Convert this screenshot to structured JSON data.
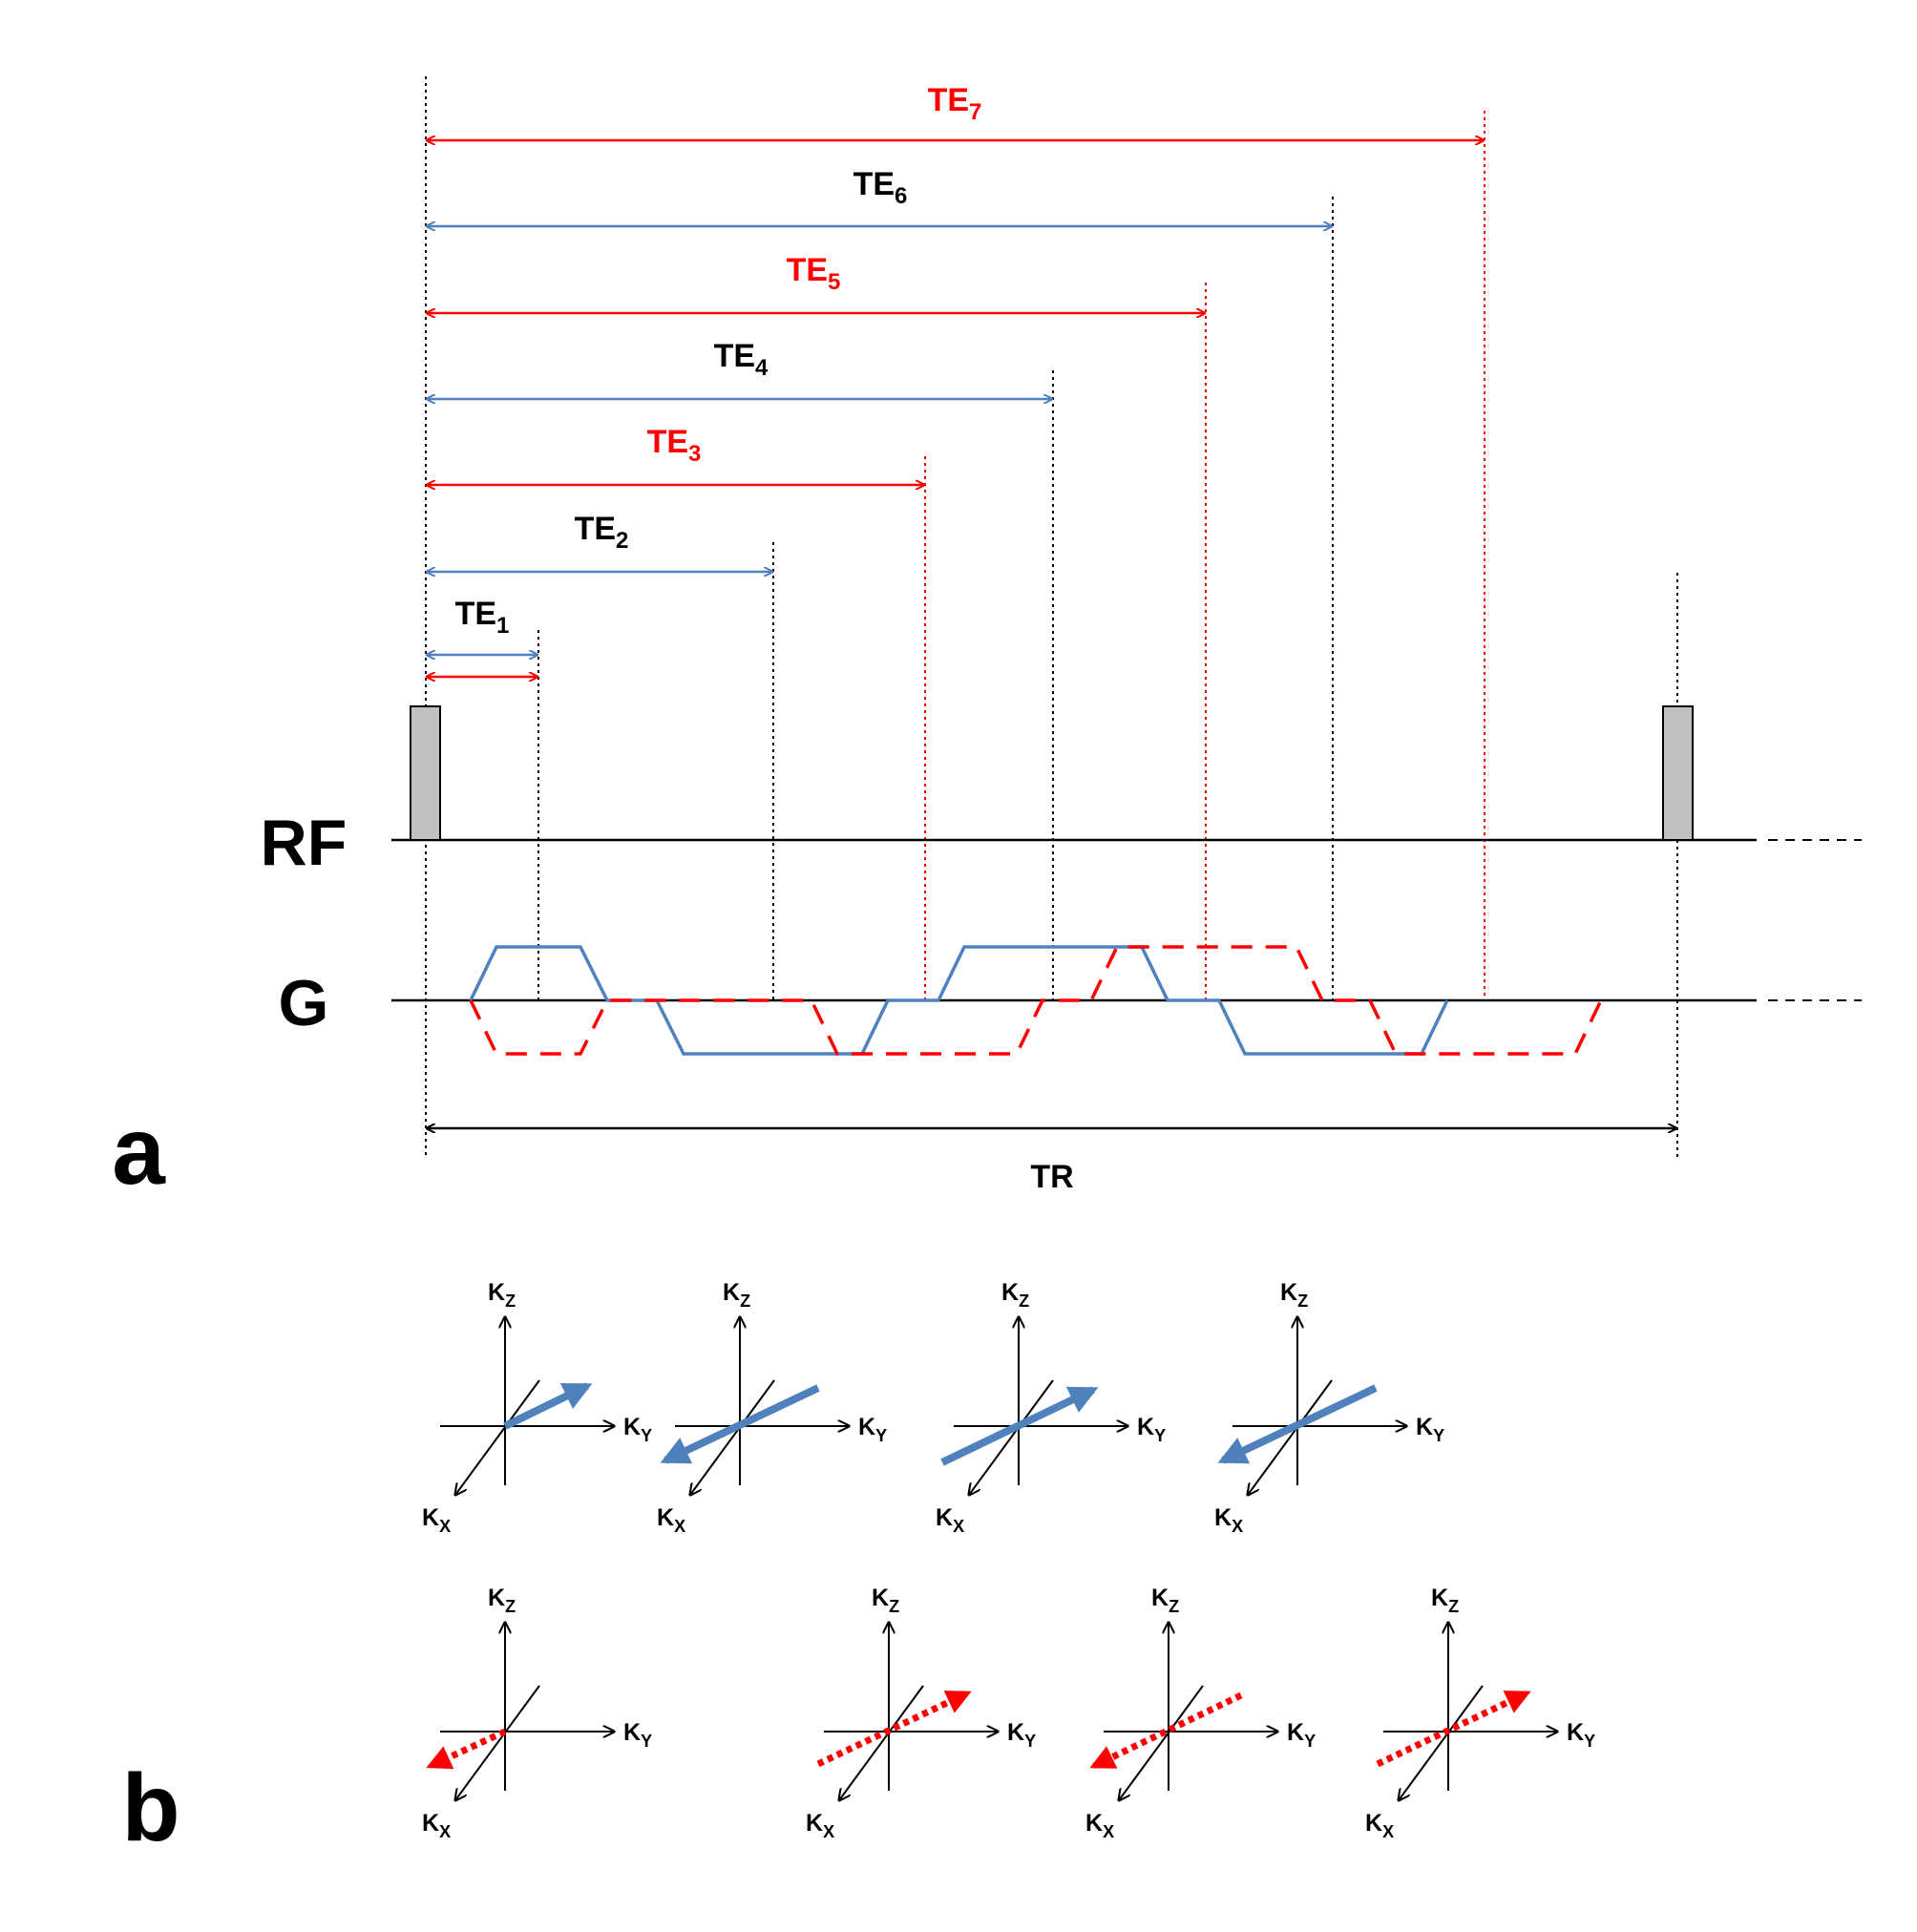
{
  "colors": {
    "blue": "#4f81bd",
    "red": "#ff0000",
    "black": "#000000",
    "rf_pulse": "#c0c0c0"
  },
  "panel_labels": {
    "a": "a",
    "b": "b"
  },
  "channels": {
    "rf": "RF",
    "g": "G"
  },
  "echo_times": [
    {
      "base": "TE",
      "sub": "1",
      "color": "black"
    },
    {
      "base": "TE",
      "sub": "2",
      "color": "black"
    },
    {
      "base": "TE",
      "sub": "3",
      "color": "red"
    },
    {
      "base": "TE",
      "sub": "4",
      "color": "black"
    },
    {
      "base": "TE",
      "sub": "5",
      "color": "red"
    },
    {
      "base": "TE",
      "sub": "6",
      "color": "black"
    },
    {
      "base": "TE",
      "sub": "7",
      "color": "red"
    }
  ],
  "tr_label": "TR",
  "kspace": {
    "kz": {
      "base": "K",
      "sub": "Z"
    },
    "ky": {
      "base": "K",
      "sub": "Y"
    },
    "kx": {
      "base": "K",
      "sub": "X"
    }
  }
}
